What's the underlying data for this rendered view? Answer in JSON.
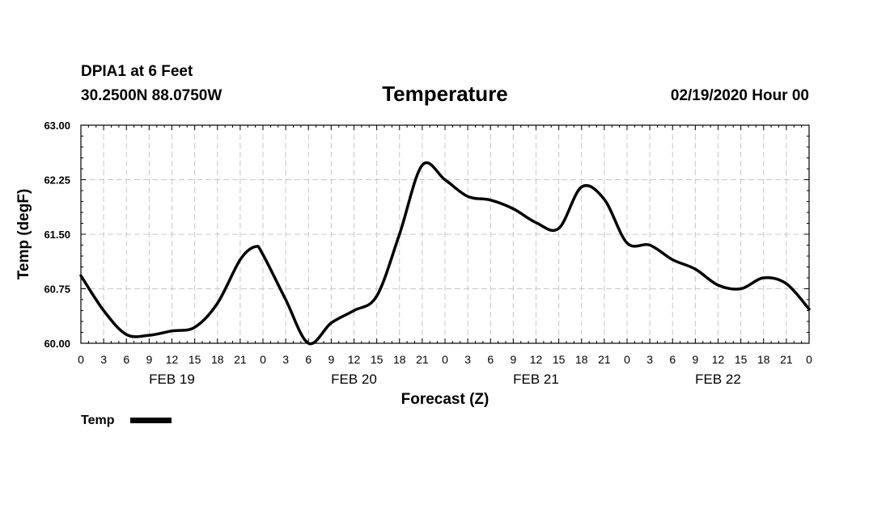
{
  "header": {
    "station": "DPIA1 at 6 Feet",
    "location": "30.2500N 88.0750W",
    "issued": "02/19/2020 Hour 00"
  },
  "chart_data": {
    "type": "line",
    "title": "Temperature",
    "xlabel": "Forecast (Z)",
    "ylabel": "Temp (degF)",
    "ylim": [
      60.0,
      63.0
    ],
    "xlim": [
      0,
      96
    ],
    "yticks": [
      "60.00",
      "60.75",
      "61.50",
      "62.25",
      "63.00"
    ],
    "ytick_values": [
      60.0,
      60.75,
      61.5,
      62.25,
      63.0
    ],
    "xtick_hours": [
      0,
      3,
      6,
      9,
      12,
      15,
      18,
      21,
      24,
      27,
      30,
      33,
      36,
      39,
      42,
      45,
      48,
      51,
      54,
      57,
      60,
      63,
      66,
      69,
      72,
      75,
      78,
      81,
      84,
      87,
      90,
      93,
      96
    ],
    "xtick_labels": [
      "0",
      "3",
      "6",
      "9",
      "12",
      "15",
      "18",
      "21",
      "0",
      "3",
      "6",
      "9",
      "12",
      "15",
      "18",
      "21",
      "0",
      "3",
      "6",
      "9",
      "12",
      "15",
      "18",
      "21",
      "0",
      "3",
      "6",
      "9",
      "12",
      "15",
      "18",
      "21",
      "0"
    ],
    "days": [
      {
        "label": "FEB 19",
        "center_hour": 12
      },
      {
        "label": "FEB 20",
        "center_hour": 36
      },
      {
        "label": "FEB 21",
        "center_hour": 60
      },
      {
        "label": "FEB 22",
        "center_hour": 84
      }
    ],
    "grid": true,
    "legend_position": "bottom-left",
    "series": [
      {
        "name": "Temp",
        "color": "#000000",
        "x": [
          0,
          3,
          6,
          9,
          12,
          15,
          18,
          21,
          23,
          24,
          27,
          30,
          33,
          36,
          39,
          42,
          45,
          48,
          51,
          54,
          57,
          60,
          63,
          66,
          69,
          72,
          75,
          78,
          81,
          84,
          87,
          90,
          93,
          96
        ],
        "y": [
          60.93,
          60.45,
          60.12,
          60.11,
          60.17,
          60.22,
          60.55,
          61.15,
          61.33,
          61.22,
          60.6,
          60.0,
          60.28,
          60.45,
          60.65,
          61.5,
          62.45,
          62.25,
          62.02,
          61.97,
          61.85,
          61.66,
          61.58,
          62.15,
          61.98,
          61.38,
          61.35,
          61.15,
          61.02,
          60.8,
          60.75,
          60.9,
          60.82,
          60.47
        ]
      }
    ]
  }
}
